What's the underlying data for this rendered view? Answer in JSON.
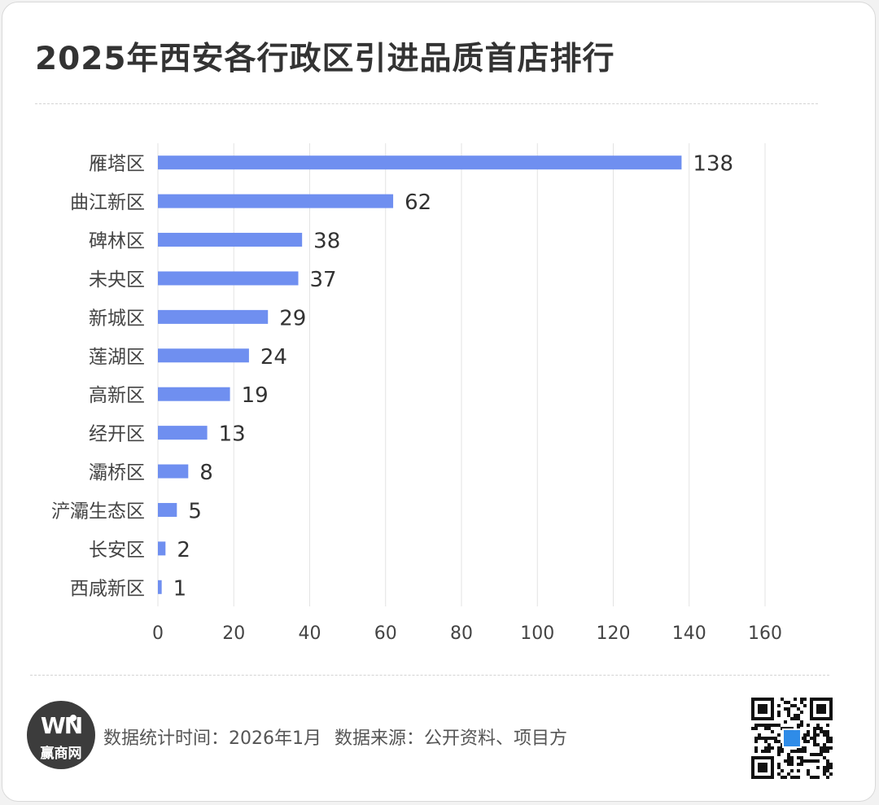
{
  "title": "2025年西安各行政区引进品质首店排行",
  "colors": {
    "bar": "#6f8ff0",
    "grid": "#e3e3e3",
    "text": "#444444",
    "title": "#333333"
  },
  "chart_data": {
    "type": "bar",
    "orientation": "horizontal",
    "title": "2025年西安各行政区引进品质首店排行",
    "categories": [
      "雁塔区",
      "曲江新区",
      "碑林区",
      "未央区",
      "新城区",
      "莲湖区",
      "高新区",
      "经开区",
      "灞桥区",
      "浐灞生态区",
      "长安区",
      "西咸新区"
    ],
    "values": [
      138,
      62,
      38,
      37,
      29,
      24,
      19,
      13,
      8,
      5,
      2,
      1
    ],
    "xlim": [
      0,
      160
    ],
    "xticks": [
      0,
      20,
      40,
      60,
      80,
      100,
      120,
      140,
      160
    ],
    "xlabel": "",
    "ylabel": "",
    "grid": "vertical",
    "data_labels": true,
    "legend": "none"
  },
  "footer": {
    "logo_mark": "WN",
    "logo_name": "赢商网",
    "stat_time": "数据统计时间：2026年1月",
    "source": "数据来源：公开资料、项目方"
  }
}
